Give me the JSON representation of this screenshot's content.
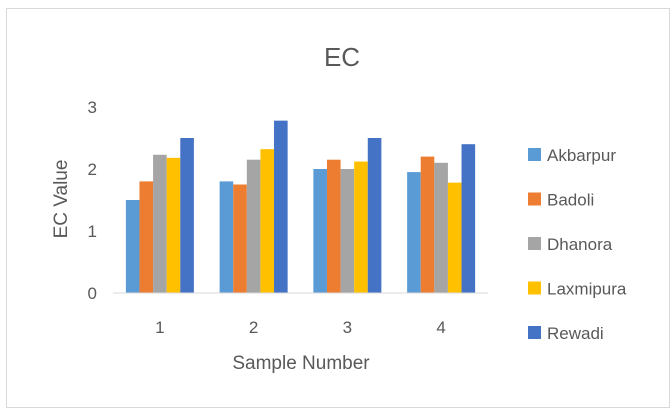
{
  "chart_data": {
    "type": "bar",
    "title": "EC",
    "xlabel": "Sample Number",
    "ylabel": "EC Value",
    "categories": [
      "1",
      "2",
      "3",
      "4"
    ],
    "ylim": [
      0,
      3
    ],
    "yticks": [
      "0",
      "1",
      "2",
      "3"
    ],
    "grid": false,
    "legend": "right",
    "series": [
      {
        "name": "Akbarpur",
        "color": "#5b9bd5",
        "values": [
          1.5,
          1.8,
          2.0,
          1.95
        ]
      },
      {
        "name": "Badoli",
        "color": "#ed7d31",
        "values": [
          1.8,
          1.75,
          2.15,
          2.2
        ]
      },
      {
        "name": "Dhanora",
        "color": "#a5a5a5",
        "values": [
          2.23,
          2.15,
          2.0,
          2.1
        ]
      },
      {
        "name": "Laxmipura",
        "color": "#ffc000",
        "values": [
          2.18,
          2.32,
          2.12,
          1.78
        ]
      },
      {
        "name": "Rewadi",
        "color": "#4472c4",
        "values": [
          2.5,
          2.78,
          2.5,
          2.4
        ]
      }
    ]
  }
}
